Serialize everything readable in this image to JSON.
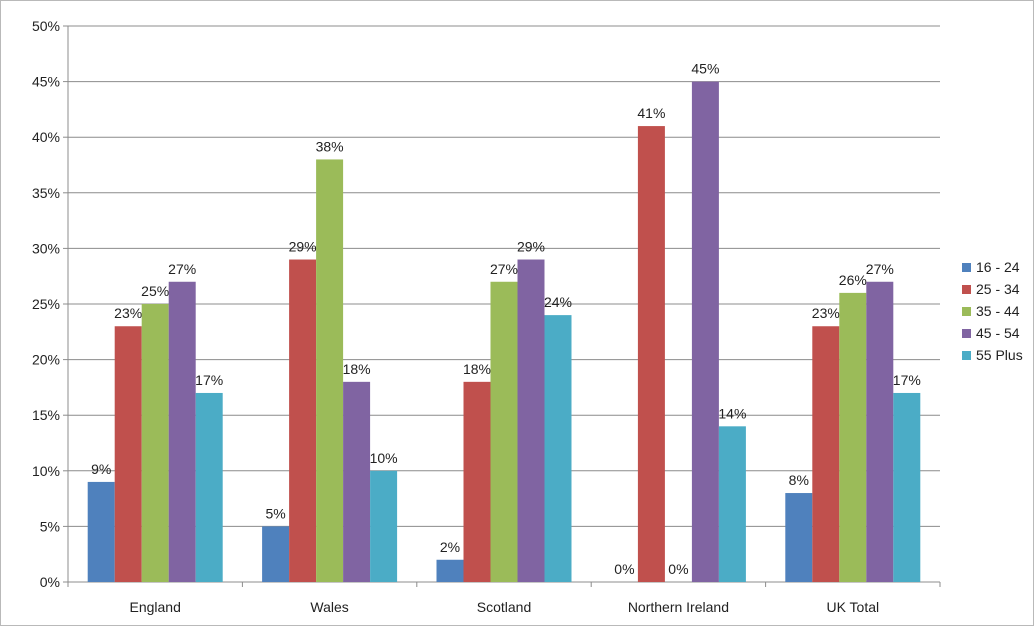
{
  "chart_data": {
    "type": "bar",
    "title": "",
    "xlabel": "",
    "ylabel": "",
    "ylim": [
      0,
      50
    ],
    "y_tick_step": 5,
    "y_tick_suffix": "%",
    "grid": true,
    "legend_position": "right",
    "categories": [
      "England",
      "Wales",
      "Scotland",
      "Northern Ireland",
      "UK Total"
    ],
    "series": [
      {
        "name": "16 - 24",
        "color": "#4f81bd",
        "values": [
          9,
          5,
          2,
          0,
          8
        ]
      },
      {
        "name": "25 - 34",
        "color": "#c0504d",
        "values": [
          23,
          29,
          18,
          41,
          23
        ]
      },
      {
        "name": "35 - 44",
        "color": "#9bbb59",
        "values": [
          25,
          38,
          27,
          0,
          26
        ]
      },
      {
        "name": "45 - 54",
        "color": "#8064a2",
        "values": [
          27,
          18,
          29,
          45,
          27
        ]
      },
      {
        "name": "55 Plus",
        "color": "#4bacc6",
        "values": [
          17,
          10,
          24,
          14,
          17
        ]
      }
    ]
  }
}
